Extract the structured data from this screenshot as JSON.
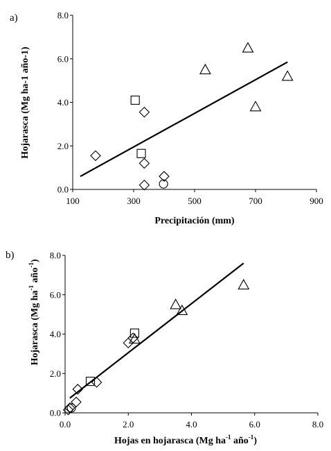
{
  "chart_data": [
    {
      "panel_label": "a)",
      "type": "scatter",
      "xlabel": "Precipitación (mm)",
      "ylabel": "Hojarasca (Mg ha-1 año-1)",
      "xlim": [
        100,
        900
      ],
      "ylim": [
        0,
        8
      ],
      "xticks": [
        "100",
        "300",
        "500",
        "700",
        "900"
      ],
      "yticks": [
        "0.0",
        "2.0",
        "4.0",
        "6.0",
        "8.0"
      ],
      "grid": false,
      "groups": [
        {
          "marker": "diamond",
          "points": [
            [
              175,
              1.55
            ],
            [
              335,
              3.55
            ],
            [
              335,
              1.2
            ],
            [
              335,
              0.2
            ],
            [
              400,
              0.6
            ]
          ]
        },
        {
          "marker": "square",
          "points": [
            [
              305,
              4.1
            ],
            [
              325,
              1.65
            ]
          ]
        },
        {
          "marker": "circle",
          "points": [
            [
              398,
              0.25
            ]
          ]
        },
        {
          "marker": "triangle",
          "points": [
            [
              535,
              5.5
            ],
            [
              675,
              6.5
            ],
            [
              700,
              3.8
            ],
            [
              805,
              5.2
            ]
          ]
        }
      ],
      "trendline": [
        [
          125,
          0.6
        ],
        [
          805,
          5.85
        ]
      ]
    },
    {
      "panel_label": "b)",
      "type": "scatter",
      "xlabel": "Hojas en hojarasca (Mg ha",
      "xlabel_sup1": "-1",
      "xlabel_mid": " año",
      "xlabel_sup2": "-1",
      "xlabel_end": ")",
      "ylabel": "Hojarasca (Mg ha",
      "ylabel_sup1": "-1",
      "ylabel_mid": " año",
      "ylabel_sup2": "-1",
      "ylabel_end": ")",
      "xlim": [
        0,
        8
      ],
      "ylim": [
        0,
        8
      ],
      "xticks": [
        "0.0",
        "2.0",
        "4.0",
        "6.0",
        "8.0"
      ],
      "yticks": [
        "0.0",
        "2.0",
        "4.0",
        "6.0",
        "8.0"
      ],
      "grid": false,
      "groups": [
        {
          "marker": "diamond",
          "points": [
            [
              0.1,
              0.15
            ],
            [
              0.15,
              0.25
            ],
            [
              0.35,
              0.55
            ],
            [
              0.4,
              1.2
            ],
            [
              1.0,
              1.55
            ],
            [
              2.0,
              3.55
            ],
            [
              2.15,
              3.8
            ]
          ]
        },
        {
          "marker": "square",
          "points": [
            [
              0.8,
              1.6
            ],
            [
              2.2,
              4.05
            ]
          ]
        },
        {
          "marker": "circle",
          "points": [
            [
              0.2,
              0.25
            ]
          ]
        },
        {
          "marker": "triangle",
          "points": [
            [
              2.2,
              3.75
            ],
            [
              3.5,
              5.5
            ],
            [
              3.7,
              5.2
            ],
            [
              5.65,
              6.5
            ]
          ]
        }
      ],
      "trendline": [
        [
          0.15,
          0.75
        ],
        [
          5.65,
          7.6
        ]
      ]
    }
  ]
}
